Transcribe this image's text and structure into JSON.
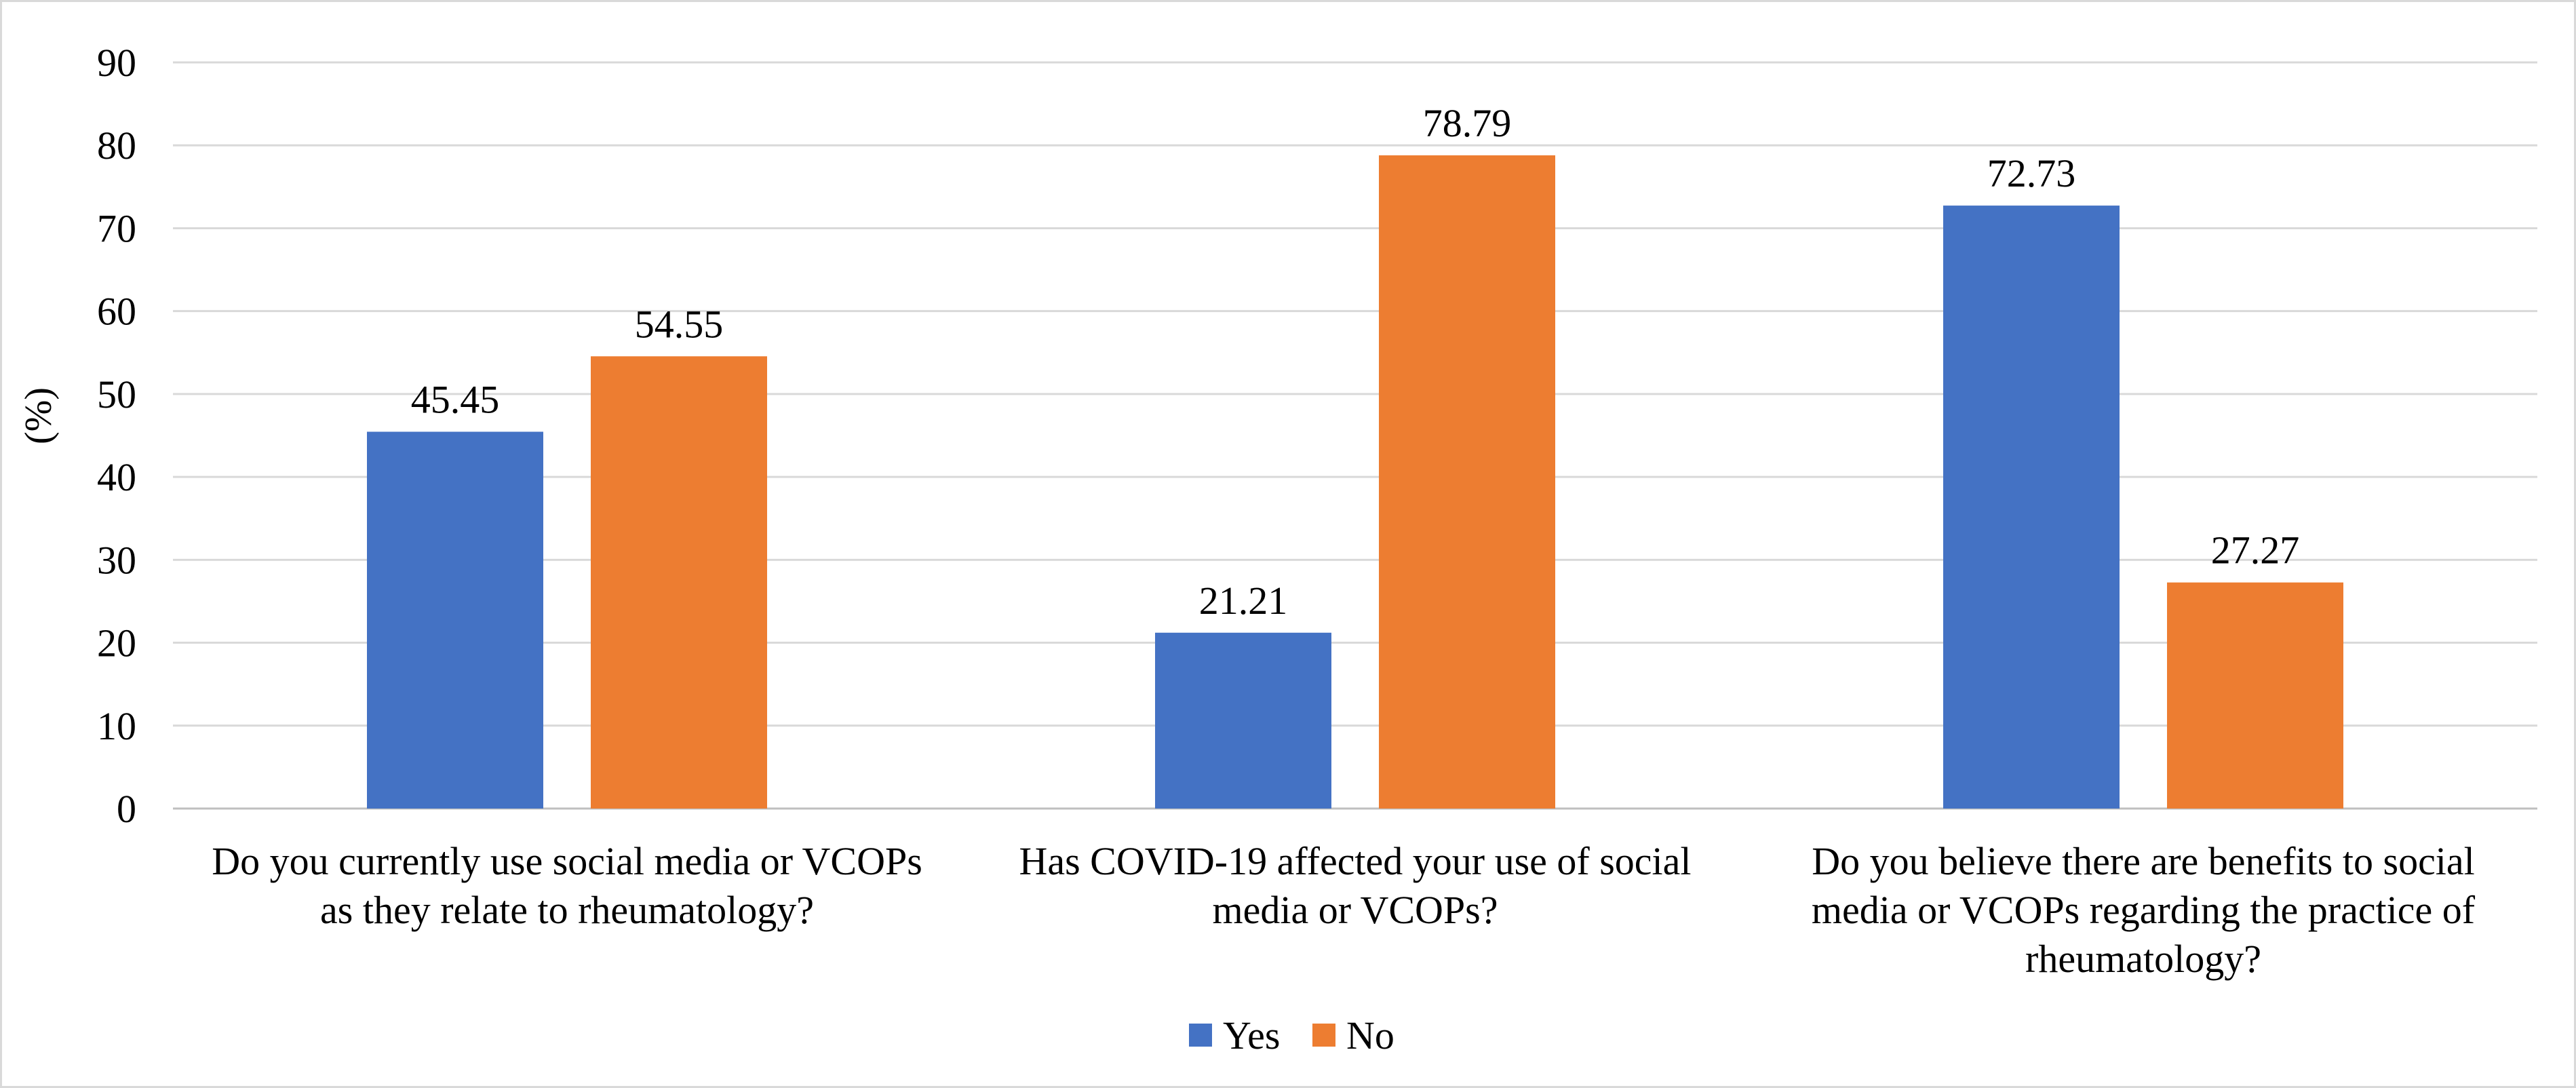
{
  "chart_data": {
    "type": "bar",
    "ylabel": "(%)",
    "ylim": [
      0,
      90
    ],
    "ytick_step": 10,
    "grid": true,
    "legend_position": "bottom",
    "categories": [
      [
        "Do you currently use social media or VCOPs",
        "as they relate to rheumatology?"
      ],
      [
        "Has COVID-19 affected your use of social",
        "media or VCOPs?"
      ],
      [
        "Do you believe there are benefits to social",
        "media or VCOPs regarding the practice of",
        "rheumatology?"
      ]
    ],
    "series": [
      {
        "name": "Yes",
        "color": "#4472c4",
        "values": [
          45.45,
          21.21,
          72.73
        ]
      },
      {
        "name": "No",
        "color": "#ed7d31",
        "values": [
          54.55,
          78.79,
          27.27
        ]
      }
    ]
  }
}
